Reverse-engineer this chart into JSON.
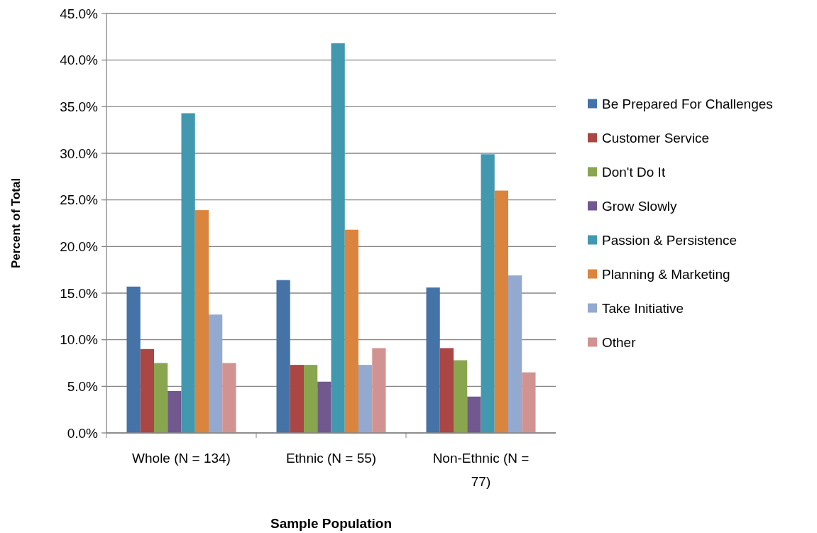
{
  "chart_data": {
    "type": "bar",
    "xlabel": "Sample Population",
    "ylabel": "Percent of Total",
    "categories": [
      "Whole (N = 134)",
      "Ethnic (N = 55)",
      "Non-Ethnic (N = 77)"
    ],
    "series": [
      {
        "name": "Be Prepared For Challenges",
        "color": "#4572a7",
        "values": [
          15.7,
          16.4,
          15.6
        ]
      },
      {
        "name": "Customer Service",
        "color": "#aa4643",
        "values": [
          9.0,
          7.3,
          9.1
        ]
      },
      {
        "name": "Don't Do It",
        "color": "#89a54e",
        "values": [
          7.5,
          7.3,
          7.8
        ]
      },
      {
        "name": "Grow Slowly",
        "color": "#71588f",
        "values": [
          4.5,
          5.5,
          3.9
        ]
      },
      {
        "name": "Passion & Persistence",
        "color": "#4198af",
        "values": [
          34.3,
          41.8,
          29.9
        ]
      },
      {
        "name": "Planning & Marketing",
        "color": "#db843d",
        "values": [
          23.9,
          21.8,
          26.0
        ]
      },
      {
        "name": "Take Initiative",
        "color": "#93a9cf",
        "values": [
          12.7,
          7.3,
          16.9
        ]
      },
      {
        "name": "Other",
        "color": "#d19392",
        "values": [
          7.5,
          9.1,
          6.5
        ]
      }
    ],
    "ylim": [
      0,
      45
    ],
    "yticks": [
      {
        "value": 0,
        "label": "0.0%"
      },
      {
        "value": 5,
        "label": "5.0%"
      },
      {
        "value": 10,
        "label": "10.0%"
      },
      {
        "value": 15,
        "label": "15.0%"
      },
      {
        "value": 20,
        "label": "20.0%"
      },
      {
        "value": 25,
        "label": "25.0%"
      },
      {
        "value": 30,
        "label": "30.0%"
      },
      {
        "value": 35,
        "label": "35.0%"
      },
      {
        "value": 40,
        "label": "40.0%"
      },
      {
        "value": 45,
        "label": "45.0%"
      }
    ],
    "grid": "y",
    "legend": "right"
  }
}
